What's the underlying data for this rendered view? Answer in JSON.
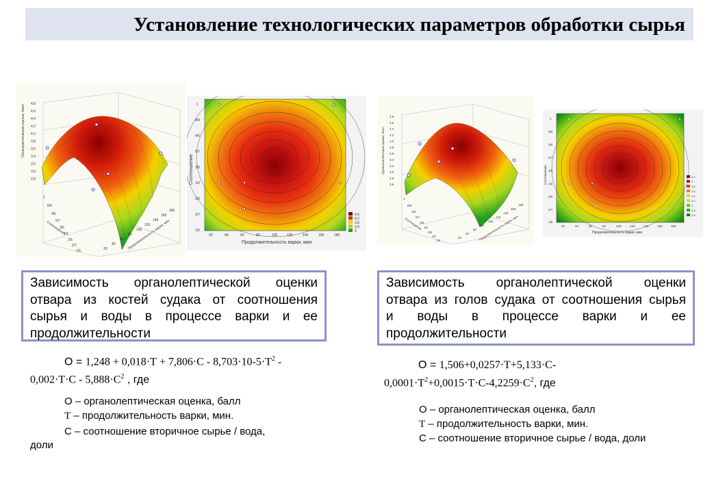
{
  "slide": {
    "title": "Установление технологических параметров обработки сырья"
  },
  "left": {
    "surface": {
      "z_ticks": [
        "4,8",
        "4,6",
        "4,4",
        "4,2",
        "4,0",
        "3,8",
        "3,6",
        "3,4",
        "3,2",
        "3,0",
        "2,8"
      ],
      "z_label": "Органолептическая оценка, балл",
      "c_ticks": [
        "1/5",
        "2/7",
        "2/5",
        "1/2",
        "3/5",
        "5/7",
        "4/5",
        "8/9",
        "1"
      ],
      "c_label": "Соотношение",
      "t_ticks": [
        "20",
        "40",
        "60",
        "80",
        "100",
        "120",
        "140",
        "160",
        "180"
      ],
      "t_label": "Продолжительность варки, мин"
    },
    "contour": {
      "y_ticks": [
        "1",
        "8/9",
        "4/5",
        "5/7",
        "3/5",
        "1/2",
        "2/5",
        "2/7",
        "1/5"
      ],
      "y_label": "Соотношение",
      "x_ticks": [
        "20",
        "40",
        "60",
        "80",
        "100",
        "120",
        "140",
        "160",
        "180"
      ],
      "x_label": "Продолжительность варки, мин",
      "legend": [
        "4,6",
        "4,2",
        "3,8",
        "3,4",
        "3"
      ]
    },
    "caption": [
      "Зависимость органолептической оценки",
      "отвара из костей судака от соотношения",
      "сырья и воды в процессе варки и ее",
      "продолжительности"
    ],
    "formula": {
      "line1_prefix": "О = ",
      "line1_math": "1,248 + 0,018·Т + 7,806·С - 8,703·10-5·Т",
      "line1_sup": "2",
      "line1_end": " -",
      "line2_math": "0,002·Т·С - 5,888·С",
      "line2_sup": "2",
      "line2_end": " , где"
    },
    "legend": {
      "o": "О – органолептическая оценка, балл",
      "t_prefix": "Т",
      "t": " – продолжительность варки, мин.",
      "c": "С – соотношение вторичное сырье / вода,",
      "c2": "доли"
    }
  },
  "right": {
    "surface": {
      "z_ticks": [
        "4,8",
        "4,6",
        "4,4",
        "4,2",
        "4,0",
        "3,8",
        "3,6",
        "3,4",
        "3,2",
        "3,0",
        "2,8",
        "2,6"
      ],
      "z_label": "Органолептическая оценка, балл",
      "c_ticks": [
        "1/5",
        "2/7",
        "2/5",
        "1/2",
        "3/5",
        "5/7",
        "4/5",
        "8/9",
        "1"
      ],
      "c_label": "Соотношение",
      "t_ticks": [
        "20",
        "40",
        "60",
        "80",
        "100",
        "120",
        "140",
        "160",
        "180"
      ],
      "t_label": "Продолжительность варки, мин"
    },
    "contour": {
      "y_ticks": [
        "1",
        "8/9",
        "4/5",
        "5/7",
        "3/5",
        "1/2",
        "2/5",
        "2/7",
        "1/5"
      ],
      "y_label": "Соотношение",
      "x_ticks": [
        "20",
        "40",
        "60",
        "80",
        "100",
        "120",
        "140",
        "160",
        "180"
      ],
      "x_label": "Продолжительность варки, мин",
      "legend": [
        "4,2",
        "4",
        "3,8",
        "3,6",
        "3,4",
        "3,2",
        "3",
        "2,8",
        "2,6"
      ]
    },
    "caption": [
      "Зависимость органолептической оценки",
      "отвара из голов судака от соотношения сырья",
      "и воды в процессе варки и ее",
      "продолжительности"
    ],
    "formula": {
      "line1_prefix": "О = ",
      "line1_math": "1,506+0,0257·Т+5,133·С-",
      "line2_math": "0,0001·Т",
      "line2_sup": "2",
      "line2_mid": "+0,0015·Т·С-4,2259·С",
      "line2_sup2": "2",
      "line2_end": ", где"
    },
    "legend": {
      "o": "О – органолептическая оценка, балл",
      "t_prefix": "Т",
      "t": " – продолжительность варки, мин.",
      "c": "С – соотношение вторичное сырье / вода, доли"
    }
  },
  "colors": {
    "title_bg": "#dfe3f0",
    "caption_border": "#8a93c6",
    "peak": "#8b0000",
    "high": "#e03010",
    "mid": "#f4e000",
    "low": "#20a020"
  }
}
